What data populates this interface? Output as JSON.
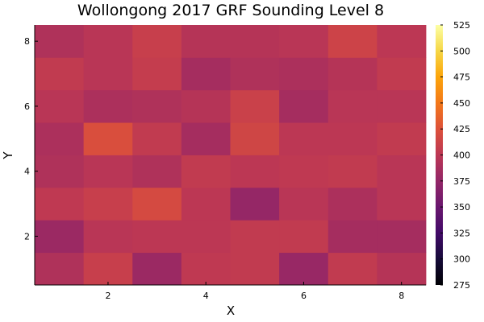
{
  "chart_data": {
    "type": "heatmap",
    "title": "Wollongong 2017 GRF Sounding Level 8",
    "xlabel": "X",
    "ylabel": "Y",
    "x": [
      1,
      2,
      3,
      4,
      5,
      6,
      7,
      8
    ],
    "y": [
      1,
      2,
      3,
      4,
      5,
      6,
      7,
      8
    ],
    "xlim": [
      0.5,
      8.5
    ],
    "ylim": [
      0.5,
      8.5
    ],
    "xticks": [
      2,
      4,
      6,
      8
    ],
    "yticks": [
      2,
      4,
      6,
      8
    ],
    "grid": false,
    "colormap": "inferno",
    "clim": [
      275,
      525
    ],
    "colorbar_ticks": [
      275,
      300,
      325,
      350,
      375,
      400,
      425,
      450,
      475,
      500,
      525
    ],
    "z_rows_y1_to_y8": [
      [
        392,
        408,
        380,
        402,
        404,
        378,
        404,
        396
      ],
      [
        380,
        398,
        400,
        400,
        404,
        404,
        386,
        386
      ],
      [
        402,
        408,
        418,
        400,
        376,
        398,
        390,
        398
      ],
      [
        392,
        398,
        392,
        404,
        400,
        402,
        404,
        398
      ],
      [
        390,
        422,
        404,
        386,
        414,
        400,
        400,
        404
      ],
      [
        398,
        390,
        392,
        396,
        410,
        386,
        398,
        398
      ],
      [
        404,
        398,
        406,
        386,
        392,
        390,
        396,
        404
      ],
      [
        392,
        398,
        408,
        396,
        396,
        398,
        412,
        400
      ]
    ]
  }
}
